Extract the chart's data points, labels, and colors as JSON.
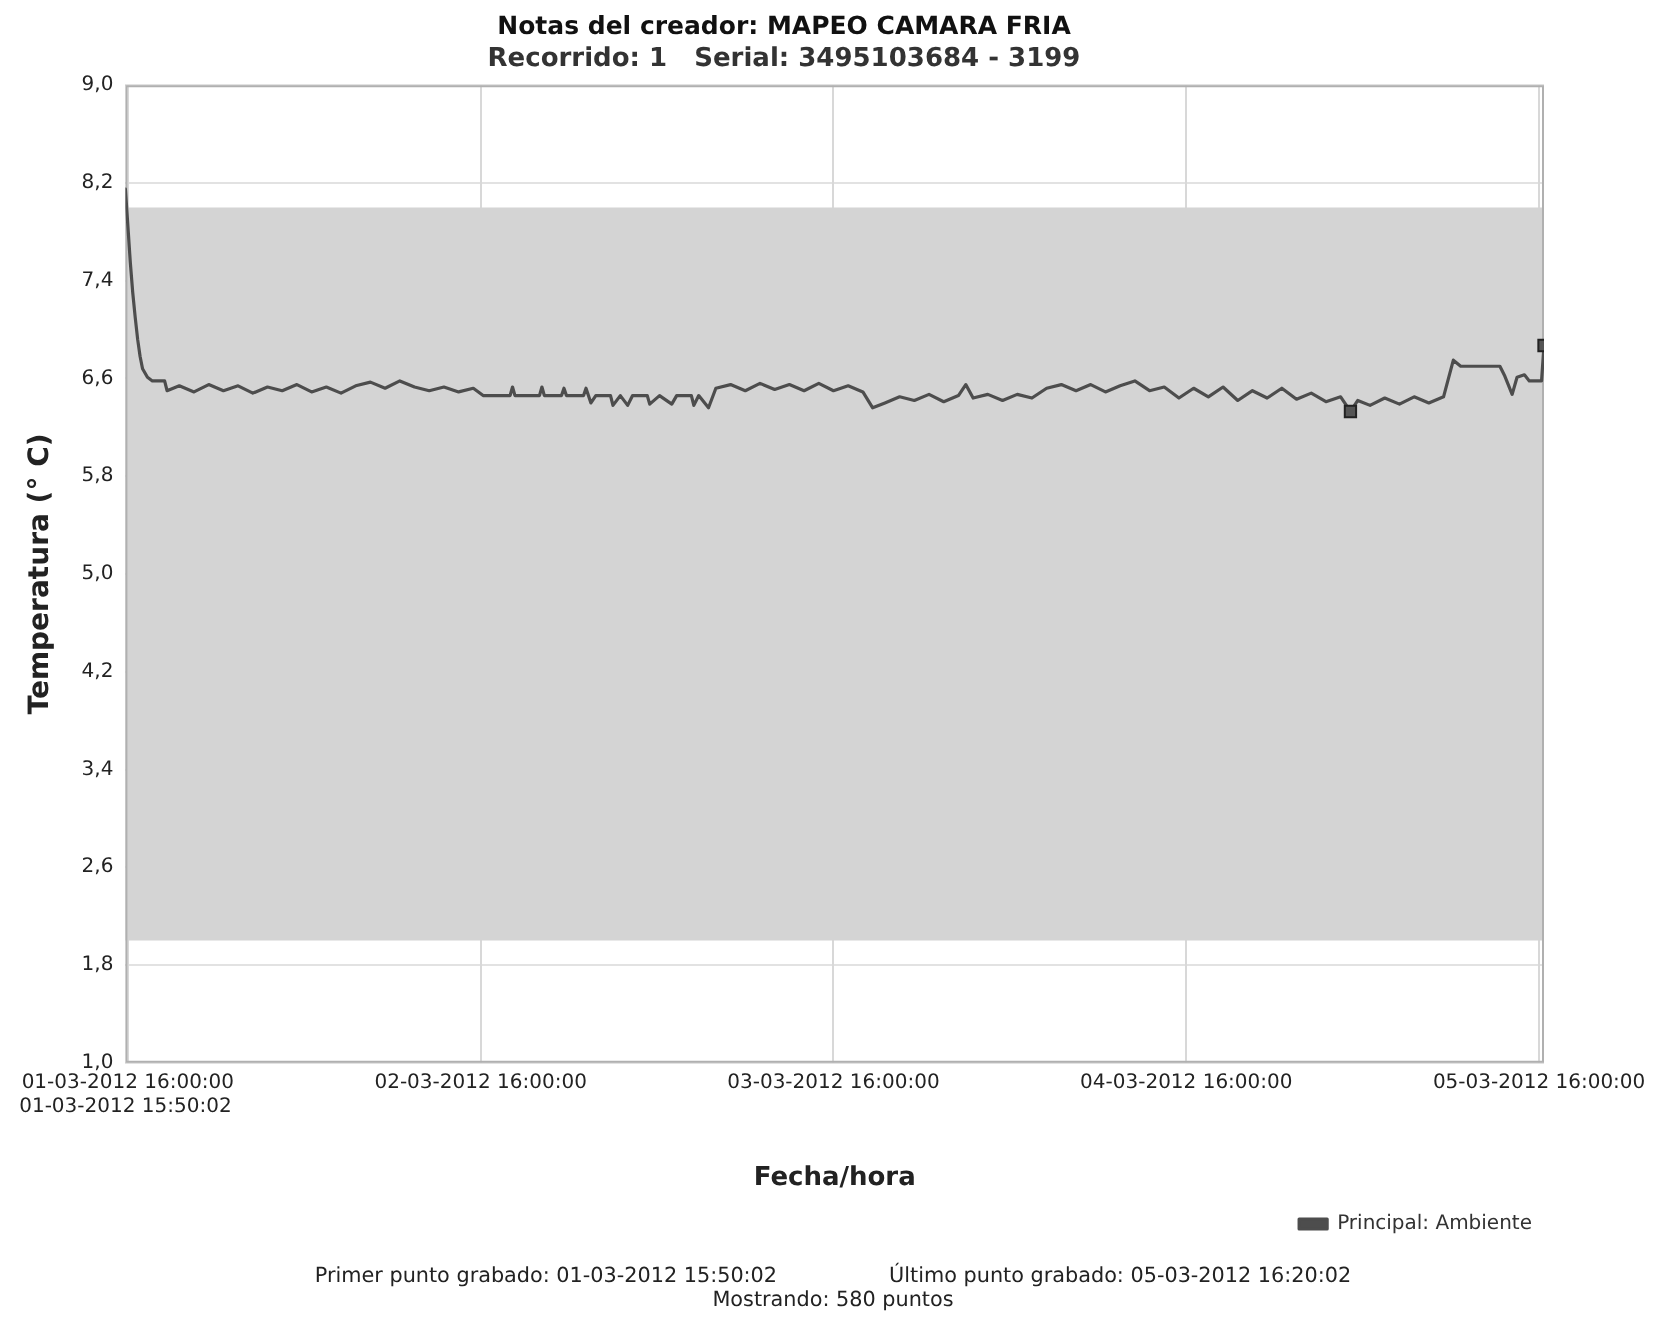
{
  "chart_data": {
    "type": "line",
    "title": "Notas del creador: MAPEO CAMARA FRIA",
    "subtitle": "Recorrido: 1   Serial: 3495103684 - 3199",
    "xlabel": "Fecha/hora",
    "ylabel": "Temperatura (° C)",
    "xlim": [
      "2012-03-01T15:50",
      "2012-03-05T16:20"
    ],
    "xticks": [
      {
        "value": "2012-03-01T16:00",
        "label": "01-03-2012 16:00:00"
      },
      {
        "value": "2012-03-02T16:00",
        "label": "02-03-2012 16:00:00"
      },
      {
        "value": "2012-03-03T16:00",
        "label": "03-03-2012 16:00:00"
      },
      {
        "value": "2012-03-04T16:00",
        "label": "04-03-2012 16:00:00"
      },
      {
        "value": "2012-03-05T16:00",
        "label": "05-03-2012 16:00:00"
      }
    ],
    "ylim": [
      1,
      9
    ],
    "yticks": [
      {
        "value": 1,
        "label": "1,0"
      },
      {
        "value": 1.8,
        "label": "1,8"
      },
      {
        "value": 2.6,
        "label": "2,6"
      },
      {
        "value": 3.4,
        "label": "3,4"
      },
      {
        "value": 4.2,
        "label": "4,2"
      },
      {
        "value": 5,
        "label": "5,0"
      },
      {
        "value": 5.8,
        "label": "5,8"
      },
      {
        "value": 6.6,
        "label": "6,6"
      },
      {
        "value": 7.4,
        "label": "7,4"
      },
      {
        "value": 8.2,
        "label": "8,2"
      },
      {
        "value": 9,
        "label": "9,0"
      }
    ],
    "series": [
      {
        "name": "Principal: Ambiente",
        "type": "line",
        "color": "#4d4d4d",
        "marker": "none",
        "x": [
          "2012-03-01T15:50",
          "2012-03-01T16:00",
          "2012-03-01T16:10",
          "2012-03-01T16:20",
          "2012-03-01T16:30",
          "2012-03-01T16:40",
          "2012-03-01T16:50",
          "2012-03-01T17:00",
          "2012-03-01T17:20",
          "2012-03-01T17:40",
          "2012-03-01T18:30",
          "2012-03-01T18:40",
          "2012-03-01T19:30",
          "2012-03-01T20:30",
          "2012-03-01T21:30",
          "2012-03-01T22:30",
          "2012-03-01T23:30",
          "2012-03-02T00:30",
          "2012-03-02T01:30",
          "2012-03-02T02:30",
          "2012-03-02T03:30",
          "2012-03-02T04:30",
          "2012-03-02T05:30",
          "2012-03-02T06:30",
          "2012-03-02T07:30",
          "2012-03-02T08:30",
          "2012-03-02T09:30",
          "2012-03-02T10:30",
          "2012-03-02T11:30",
          "2012-03-02T12:30",
          "2012-03-02T13:30",
          "2012-03-02T14:30",
          "2012-03-02T15:30",
          "2012-03-02T16:10",
          "2012-03-02T18:00",
          "2012-03-02T18:10",
          "2012-03-02T18:20",
          "2012-03-02T20:00",
          "2012-03-02T20:10",
          "2012-03-02T20:20",
          "2012-03-02T21:30",
          "2012-03-02T21:40",
          "2012-03-02T21:50",
          "2012-03-02T23:00",
          "2012-03-02T23:10",
          "2012-03-02T23:30",
          "2012-03-02T23:50",
          "2012-03-03T00:50",
          "2012-03-03T01:00",
          "2012-03-03T01:30",
          "2012-03-03T02:00",
          "2012-03-03T02:20",
          "2012-03-03T03:20",
          "2012-03-03T03:30",
          "2012-03-03T04:10",
          "2012-03-03T05:00",
          "2012-03-03T05:20",
          "2012-03-03T06:20",
          "2012-03-03T06:30",
          "2012-03-03T06:50",
          "2012-03-03T07:30",
          "2012-03-03T08:00",
          "2012-03-03T09:00",
          "2012-03-03T10:00",
          "2012-03-03T11:00",
          "2012-03-03T12:00",
          "2012-03-03T13:00",
          "2012-03-03T14:00",
          "2012-03-03T15:00",
          "2012-03-03T16:00",
          "2012-03-03T17:00",
          "2012-03-03T18:00",
          "2012-03-03T18:40",
          "2012-03-03T19:30",
          "2012-03-03T20:30",
          "2012-03-03T21:30",
          "2012-03-03T22:30",
          "2012-03-03T23:30",
          "2012-03-04T00:30",
          "2012-03-04T01:00",
          "2012-03-04T01:30",
          "2012-03-04T02:30",
          "2012-03-04T03:30",
          "2012-03-04T04:30",
          "2012-03-04T05:30",
          "2012-03-04T06:30",
          "2012-03-04T07:30",
          "2012-03-04T08:30",
          "2012-03-04T09:30",
          "2012-03-04T10:30",
          "2012-03-04T11:30",
          "2012-03-04T12:30",
          "2012-03-04T13:30",
          "2012-03-04T14:30",
          "2012-03-04T15:30",
          "2012-03-04T16:30",
          "2012-03-04T17:30",
          "2012-03-04T18:30",
          "2012-03-04T19:30",
          "2012-03-04T20:30",
          "2012-03-04T21:30",
          "2012-03-04T22:30",
          "2012-03-04T23:30",
          "2012-03-05T00:30",
          "2012-03-05T01:30",
          "2012-03-05T02:30",
          "2012-03-05T03:10",
          "2012-03-05T03:40",
          "2012-03-05T04:30",
          "2012-03-05T05:30",
          "2012-03-05T06:30",
          "2012-03-05T07:30",
          "2012-03-05T08:30",
          "2012-03-05T09:30",
          "2012-03-05T10:10",
          "2012-03-05T10:40",
          "2012-03-05T13:20",
          "2012-03-05T13:40",
          "2012-03-05T14:10",
          "2012-03-05T14:30",
          "2012-03-05T15:00",
          "2012-03-05T15:20",
          "2012-03-05T16:10",
          "2012-03-05T16:20"
        ],
        "values": [
          8.15,
          7.85,
          7.55,
          7.3,
          7.1,
          6.92,
          6.78,
          6.68,
          6.61,
          6.58,
          6.58,
          6.5,
          6.54,
          6.49,
          6.55,
          6.5,
          6.54,
          6.48,
          6.53,
          6.5,
          6.55,
          6.49,
          6.53,
          6.48,
          6.54,
          6.57,
          6.52,
          6.58,
          6.53,
          6.5,
          6.53,
          6.49,
          6.52,
          6.46,
          6.46,
          6.53,
          6.46,
          6.46,
          6.53,
          6.46,
          6.46,
          6.52,
          6.46,
          6.46,
          6.52,
          6.4,
          6.46,
          6.46,
          6.38,
          6.46,
          6.38,
          6.46,
          6.46,
          6.39,
          6.46,
          6.39,
          6.46,
          6.46,
          6.38,
          6.46,
          6.36,
          6.52,
          6.55,
          6.5,
          6.56,
          6.51,
          6.55,
          6.5,
          6.56,
          6.5,
          6.54,
          6.49,
          6.36,
          6.4,
          6.45,
          6.42,
          6.47,
          6.41,
          6.46,
          6.55,
          6.44,
          6.47,
          6.42,
          6.47,
          6.44,
          6.52,
          6.55,
          6.5,
          6.55,
          6.49,
          6.54,
          6.58,
          6.5,
          6.53,
          6.44,
          6.52,
          6.45,
          6.53,
          6.42,
          6.5,
          6.44,
          6.52,
          6.43,
          6.48,
          6.41,
          6.45,
          6.33,
          6.42,
          6.38,
          6.44,
          6.39,
          6.45,
          6.4,
          6.45,
          6.75,
          6.7,
          6.7,
          6.62,
          6.47,
          6.61,
          6.63,
          6.58,
          6.58,
          6.87
        ]
      },
      {
        "type": "scatter",
        "color": "#555555",
        "marker": "square",
        "x": [
          "2012-03-05T03:10",
          "2012-03-05T16:20"
        ],
        "values": [
          6.33,
          6.87
        ]
      }
    ],
    "bands": [
      {
        "axis": "y",
        "from": 2,
        "to": 8,
        "color": "#d4d4d4"
      }
    ],
    "grid": true,
    "legend": "bottom right",
    "annotations": [
      "01-03-2012 15:50:02",
      "Primer punto grabado: 01-03-2012 15:50:02",
      "Último punto grabado: 05-03-2012 16:20:02",
      "Mostrando: 580 puntos"
    ]
  }
}
